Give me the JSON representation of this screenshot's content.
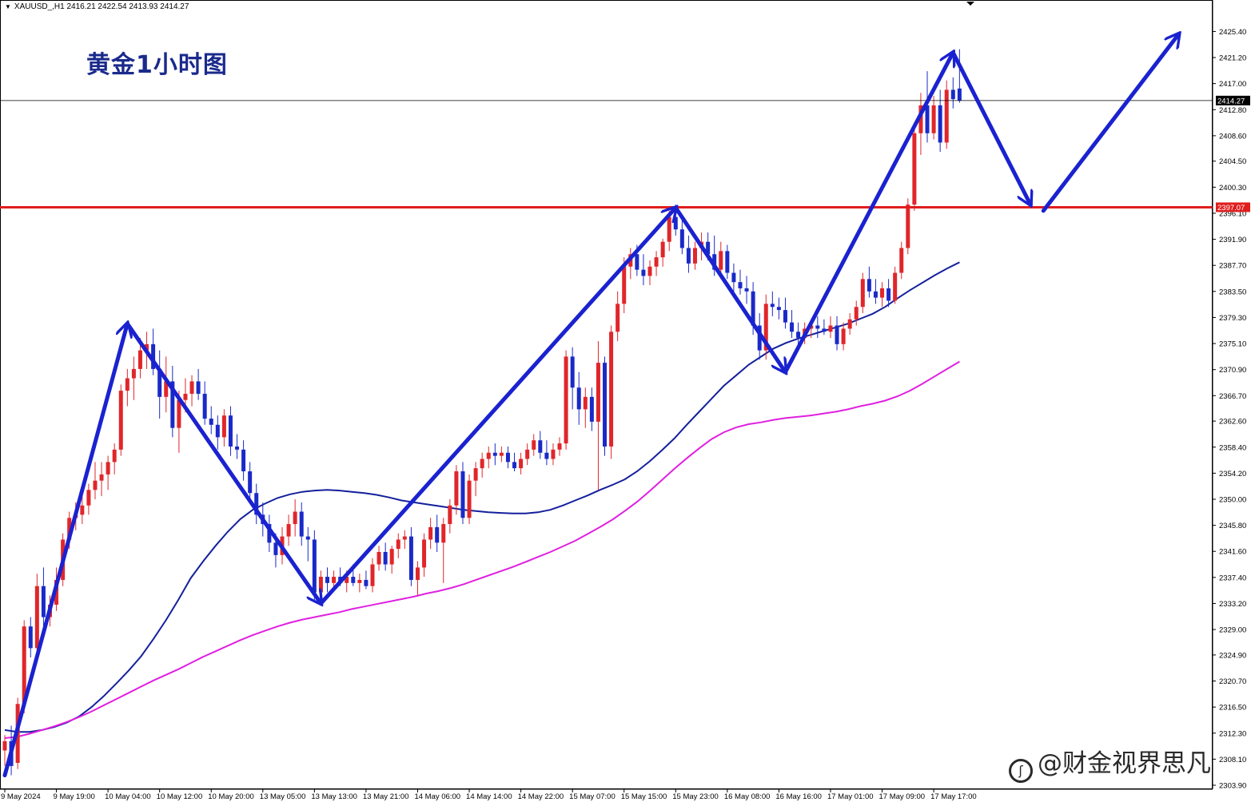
{
  "header": {
    "symbol_line": "XAUUSD_,H1  2416.21 2422.54 2413.93 2414.27"
  },
  "overlay_title": "黄金1小时图",
  "watermark": "@财金视界思凡",
  "colors": {
    "bull": "#e0262a",
    "bear": "#1a2ac8",
    "ma_fast": "#14209c",
    "ma_slow": "#e020e0",
    "support": "#e01e1e",
    "arrows": "#1a22d0"
  },
  "chart_data": {
    "type": "candlestick",
    "symbol": "XAUUSD_",
    "timeframe": "H1",
    "ohlc_header": {
      "open": 2416.21,
      "high": 2422.54,
      "low": 2413.93,
      "close": 2414.27
    },
    "current_price": 2414.27,
    "support_level": 2397.07,
    "ylim": [
      2303.9,
      2427.0
    ],
    "y_ticks": [
      "2425.40",
      "2421.20",
      "2417.00",
      "2412.80",
      "2408.60",
      "2404.50",
      "2400.30",
      "2396.10",
      "2391.90",
      "2387.70",
      "2383.50",
      "2379.30",
      "2375.10",
      "2370.90",
      "2366.70",
      "2362.60",
      "2358.40",
      "2354.20",
      "2350.00",
      "2345.80",
      "2341.60",
      "2337.40",
      "2333.20",
      "2329.00",
      "2324.90",
      "2320.70",
      "2316.50",
      "2312.30",
      "2308.10",
      "2303.90"
    ],
    "x_labels": [
      "9 May 2024",
      "9 May 19:00",
      "10 May 04:00",
      "10 May 12:00",
      "10 May 20:00",
      "13 May 05:00",
      "13 May 13:00",
      "13 May 21:00",
      "14 May 06:00",
      "14 May 14:00",
      "14 May 22:00",
      "15 May 07:00",
      "15 May 15:00",
      "15 May 23:00",
      "16 May 08:00",
      "16 May 16:00",
      "17 May 01:00",
      "17 May 09:00",
      "17 May 17:00"
    ],
    "candles": [
      [
        2309.5,
        2312.0,
        2307.0,
        2311.0
      ],
      [
        2311.0,
        2313.5,
        2305.5,
        2307.0
      ],
      [
        2307.5,
        2318.0,
        2306.5,
        2317.0
      ],
      [
        2317.0,
        2330.5,
        2315.5,
        2329.5
      ],
      [
        2329.5,
        2331.0,
        2324.5,
        2326.0
      ],
      [
        2326.0,
        2338.0,
        2325.0,
        2336.0
      ],
      [
        2336.0,
        2339.0,
        2329.5,
        2331.0
      ],
      [
        2331.0,
        2334.5,
        2329.5,
        2333.0
      ],
      [
        2333.0,
        2339.0,
        2332.0,
        2337.0
      ],
      [
        2337.0,
        2344.5,
        2336.0,
        2343.5
      ],
      [
        2343.5,
        2348.0,
        2342.0,
        2347.0
      ],
      [
        2347.0,
        2349.5,
        2345.0,
        2347.5
      ],
      [
        2347.5,
        2350.5,
        2346.0,
        2349.0
      ],
      [
        2349.0,
        2352.5,
        2347.5,
        2351.5
      ],
      [
        2351.5,
        2356.0,
        2350.0,
        2353.0
      ],
      [
        2353.0,
        2356.0,
        2350.5,
        2354.0
      ],
      [
        2354.0,
        2357.0,
        2351.5,
        2356.0
      ],
      [
        2356.0,
        2359.0,
        2354.0,
        2358.0
      ],
      [
        2358.0,
        2368.5,
        2357.0,
        2367.5
      ],
      [
        2367.5,
        2371.0,
        2365.0,
        2369.5
      ],
      [
        2369.5,
        2373.0,
        2366.0,
        2371.0
      ],
      [
        2371.0,
        2376.0,
        2369.5,
        2374.0
      ],
      [
        2374.0,
        2377.0,
        2371.0,
        2375.0
      ],
      [
        2375.0,
        2377.5,
        2370.0,
        2371.0
      ],
      [
        2371.0,
        2374.0,
        2363.0,
        2366.5
      ],
      [
        2366.5,
        2373.0,
        2364.0,
        2369.0
      ],
      [
        2369.0,
        2371.5,
        2360.0,
        2361.5
      ],
      [
        2361.5,
        2367.5,
        2357.5,
        2366.0
      ],
      [
        2366.0,
        2369.5,
        2364.0,
        2367.0
      ],
      [
        2367.0,
        2370.0,
        2365.0,
        2369.0
      ],
      [
        2369.0,
        2371.0,
        2366.0,
        2367.0
      ],
      [
        2367.0,
        2369.0,
        2362.0,
        2363.0
      ],
      [
        2363.0,
        2365.0,
        2360.5,
        2362.0
      ],
      [
        2362.0,
        2363.5,
        2358.0,
        2360.0
      ],
      [
        2360.0,
        2364.5,
        2358.5,
        2363.5
      ],
      [
        2363.5,
        2365.0,
        2357.0,
        2358.5
      ],
      [
        2358.5,
        2360.5,
        2356.5,
        2358.0
      ],
      [
        2358.0,
        2359.5,
        2353.0,
        2354.5
      ],
      [
        2354.5,
        2356.0,
        2350.0,
        2351.0
      ],
      [
        2351.0,
        2352.5,
        2346.0,
        2347.5
      ],
      [
        2347.5,
        2349.5,
        2344.0,
        2346.0
      ],
      [
        2346.0,
        2347.5,
        2341.5,
        2343.0
      ],
      [
        2343.0,
        2344.5,
        2339.0,
        2341.0
      ],
      [
        2341.0,
        2345.5,
        2339.5,
        2344.0
      ],
      [
        2344.0,
        2347.5,
        2342.5,
        2346.0
      ],
      [
        2346.0,
        2350.0,
        2344.0,
        2348.0
      ],
      [
        2348.0,
        2349.5,
        2342.5,
        2344.0
      ],
      [
        2344.0,
        2345.5,
        2340.0,
        2343.5
      ],
      [
        2343.5,
        2345.0,
        2333.5,
        2335.0
      ],
      [
        2335.0,
        2338.5,
        2333.0,
        2337.5
      ],
      [
        2337.5,
        2339.0,
        2335.0,
        2336.5
      ],
      [
        2336.5,
        2338.5,
        2335.5,
        2337.5
      ],
      [
        2337.5,
        2339.0,
        2336.0,
        2336.5
      ],
      [
        2336.5,
        2338.5,
        2335.0,
        2337.5
      ],
      [
        2337.5,
        2339.5,
        2336.0,
        2336.5
      ],
      [
        2336.5,
        2338.0,
        2335.0,
        2337.0
      ],
      [
        2337.0,
        2338.5,
        2335.5,
        2336.0
      ],
      [
        2336.0,
        2340.5,
        2335.0,
        2339.5
      ],
      [
        2339.5,
        2342.5,
        2338.5,
        2341.5
      ],
      [
        2341.5,
        2343.0,
        2338.5,
        2339.5
      ],
      [
        2339.5,
        2342.5,
        2338.0,
        2342.0
      ],
      [
        2342.0,
        2344.5,
        2340.5,
        2343.5
      ],
      [
        2343.5,
        2345.0,
        2342.0,
        2344.0
      ],
      [
        2344.0,
        2345.5,
        2336.0,
        2337.0
      ],
      [
        2337.0,
        2340.0,
        2334.5,
        2339.0
      ],
      [
        2339.0,
        2344.5,
        2337.5,
        2343.5
      ],
      [
        2343.5,
        2347.0,
        2342.0,
        2345.5
      ],
      [
        2345.5,
        2347.5,
        2341.5,
        2343.0
      ],
      [
        2343.0,
        2347.0,
        2336.5,
        2346.0
      ],
      [
        2346.0,
        2350.0,
        2344.5,
        2349.0
      ],
      [
        2349.0,
        2355.5,
        2347.5,
        2354.5
      ],
      [
        2354.5,
        2356.0,
        2346.0,
        2347.0
      ],
      [
        2347.0,
        2354.0,
        2346.0,
        2353.0
      ],
      [
        2353.0,
        2356.0,
        2350.5,
        2355.0
      ],
      [
        2355.0,
        2357.5,
        2353.5,
        2356.5
      ],
      [
        2356.5,
        2358.5,
        2355.0,
        2357.5
      ],
      [
        2357.5,
        2359.0,
        2355.5,
        2357.0
      ],
      [
        2357.0,
        2358.5,
        2356.0,
        2357.5
      ],
      [
        2357.5,
        2358.5,
        2355.0,
        2356.0
      ],
      [
        2356.0,
        2357.5,
        2354.5,
        2355.0
      ],
      [
        2355.0,
        2357.5,
        2354.0,
        2356.5
      ],
      [
        2356.5,
        2359.0,
        2355.5,
        2358.0
      ],
      [
        2358.0,
        2360.5,
        2357.0,
        2359.5
      ],
      [
        2359.5,
        2361.0,
        2356.5,
        2357.5
      ],
      [
        2357.5,
        2359.5,
        2355.5,
        2356.5
      ],
      [
        2356.5,
        2359.0,
        2355.5,
        2358.0
      ],
      [
        2358.0,
        2360.0,
        2357.0,
        2359.0
      ],
      [
        2359.0,
        2374.0,
        2358.0,
        2373.0
      ],
      [
        2373.0,
        2374.5,
        2364.5,
        2368.0
      ],
      [
        2368.0,
        2370.5,
        2362.0,
        2364.5
      ],
      [
        2364.5,
        2368.0,
        2361.5,
        2366.5
      ],
      [
        2366.5,
        2368.0,
        2361.0,
        2362.5
      ],
      [
        2362.5,
        2375.5,
        2351.5,
        2372.0
      ],
      [
        2372.0,
        2373.0,
        2357.0,
        2358.5
      ],
      [
        2358.5,
        2378.0,
        2356.5,
        2377.0
      ],
      [
        2377.0,
        2383.5,
        2375.5,
        2381.5
      ],
      [
        2381.5,
        2389.0,
        2380.0,
        2387.5
      ],
      [
        2387.5,
        2390.5,
        2385.5,
        2389.5
      ],
      [
        2389.5,
        2391.0,
        2386.0,
        2387.0
      ],
      [
        2387.0,
        2389.5,
        2384.5,
        2386.0
      ],
      [
        2386.0,
        2388.5,
        2384.5,
        2387.5
      ],
      [
        2387.5,
        2390.0,
        2386.0,
        2389.0
      ],
      [
        2389.0,
        2392.0,
        2387.5,
        2391.5
      ],
      [
        2391.5,
        2396.5,
        2390.0,
        2395.5
      ],
      [
        2395.5,
        2397.5,
        2392.5,
        2393.5
      ],
      [
        2393.5,
        2395.0,
        2389.5,
        2390.5
      ],
      [
        2390.5,
        2392.5,
        2386.5,
        2388.0
      ],
      [
        2388.0,
        2391.5,
        2387.0,
        2390.5
      ],
      [
        2390.5,
        2393.0,
        2388.5,
        2391.5
      ],
      [
        2391.5,
        2393.0,
        2388.5,
        2389.5
      ],
      [
        2389.5,
        2392.5,
        2386.0,
        2387.0
      ],
      [
        2387.0,
        2391.5,
        2385.5,
        2390.0
      ],
      [
        2390.0,
        2391.0,
        2385.5,
        2386.5
      ],
      [
        2386.5,
        2388.0,
        2383.5,
        2385.0
      ],
      [
        2385.0,
        2387.0,
        2383.0,
        2384.0
      ],
      [
        2384.0,
        2386.0,
        2381.5,
        2383.5
      ],
      [
        2383.5,
        2385.0,
        2376.5,
        2378.0
      ],
      [
        2378.0,
        2380.0,
        2372.5,
        2374.0
      ],
      [
        2374.0,
        2383.0,
        2372.5,
        2381.5
      ],
      [
        2381.5,
        2383.5,
        2379.5,
        2381.0
      ],
      [
        2381.0,
        2382.5,
        2379.0,
        2380.5
      ],
      [
        2380.5,
        2382.5,
        2377.5,
        2378.5
      ],
      [
        2378.5,
        2380.5,
        2376.0,
        2377.0
      ],
      [
        2377.0,
        2378.5,
        2375.0,
        2376.0
      ],
      [
        2376.0,
        2378.5,
        2375.0,
        2377.5
      ],
      [
        2377.5,
        2379.0,
        2376.0,
        2378.0
      ],
      [
        2378.0,
        2379.5,
        2376.0,
        2377.5
      ],
      [
        2377.5,
        2379.0,
        2376.5,
        2377.0
      ],
      [
        2377.0,
        2379.5,
        2376.0,
        2378.0
      ],
      [
        2378.0,
        2379.5,
        2374.0,
        2375.0
      ],
      [
        2375.0,
        2378.5,
        2374.0,
        2377.5
      ],
      [
        2377.5,
        2380.0,
        2376.5,
        2379.0
      ],
      [
        2379.0,
        2382.0,
        2378.0,
        2381.0
      ],
      [
        2381.0,
        2386.5,
        2380.0,
        2385.5
      ],
      [
        2385.5,
        2387.5,
        2382.5,
        2383.5
      ],
      [
        2383.5,
        2385.5,
        2381.5,
        2382.5
      ],
      [
        2382.5,
        2385.0,
        2381.0,
        2384.0
      ],
      [
        2384.0,
        2385.5,
        2381.0,
        2382.0
      ],
      [
        2382.0,
        2387.5,
        2381.5,
        2386.5
      ],
      [
        2386.5,
        2391.5,
        2385.5,
        2390.5
      ],
      [
        2390.5,
        2398.5,
        2389.5,
        2397.5
      ],
      [
        2397.5,
        2410.0,
        2396.5,
        2409.0
      ],
      [
        2409.0,
        2415.5,
        2405.5,
        2413.5
      ],
      [
        2413.5,
        2419.0,
        2407.5,
        2409.0
      ],
      [
        2409.0,
        2415.0,
        2408.0,
        2413.5
      ],
      [
        2413.5,
        2416.0,
        2406.0,
        2407.5
      ],
      [
        2407.5,
        2417.5,
        2406.5,
        2416.0
      ],
      [
        2416.0,
        2418.0,
        2413.0,
        2414.5
      ],
      [
        2416.21,
        2422.54,
        2413.93,
        2414.27
      ]
    ],
    "series": [
      {
        "name": "",
        "type": "ma",
        "color_key": "ma_fast",
        "values": [
          2312.8,
          2312.5,
          2312.5,
          2312.8,
          2313.3,
          2314.0,
          2315.0,
          2316.5,
          2318.3,
          2320.3,
          2322.4,
          2324.7,
          2327.5,
          2330.5,
          2333.8,
          2337.3,
          2340.0,
          2342.5,
          2344.8,
          2346.8,
          2348.3,
          2349.3,
          2350.2,
          2350.8,
          2351.2,
          2351.4,
          2351.5,
          2351.4,
          2351.2,
          2351.0,
          2350.7,
          2350.3,
          2349.8,
          2349.5,
          2349.2,
          2348.9,
          2348.6,
          2348.3,
          2348.1,
          2347.9,
          2347.8,
          2347.7,
          2347.7,
          2347.9,
          2348.3,
          2349.0,
          2349.8,
          2350.6,
          2351.5,
          2352.3,
          2353.2,
          2354.5,
          2356.1,
          2357.9,
          2359.8,
          2362.0,
          2364.1,
          2366.2,
          2368.3,
          2370.0,
          2371.7,
          2373.0,
          2374.3,
          2375.2,
          2375.9,
          2376.5,
          2377.1,
          2377.7,
          2378.3,
          2379.1,
          2379.9,
          2381.0,
          2382.4,
          2383.7,
          2384.9,
          2386.1,
          2387.2,
          2388.2
        ]
      },
      {
        "name": "",
        "type": "ma",
        "color_key": "ma_slow",
        "values": [
          2311.5,
          2311.7,
          2312.2,
          2312.8,
          2313.4,
          2314.1,
          2314.9,
          2315.8,
          2316.8,
          2317.8,
          2318.8,
          2319.8,
          2320.8,
          2321.7,
          2322.6,
          2323.6,
          2324.6,
          2325.5,
          2326.4,
          2327.3,
          2328.1,
          2328.8,
          2329.5,
          2330.1,
          2330.6,
          2331.0,
          2331.4,
          2331.8,
          2332.3,
          2332.7,
          2333.1,
          2333.5,
          2333.9,
          2334.3,
          2334.8,
          2335.2,
          2335.7,
          2336.3,
          2337.0,
          2337.7,
          2338.4,
          2339.1,
          2339.9,
          2340.7,
          2341.5,
          2342.4,
          2343.3,
          2344.4,
          2345.5,
          2346.7,
          2348.1,
          2349.6,
          2351.3,
          2353.1,
          2354.9,
          2356.6,
          2358.2,
          2359.7,
          2360.8,
          2361.6,
          2362.1,
          2362.4,
          2362.8,
          2363.1,
          2363.3,
          2363.5,
          2363.8,
          2364.1,
          2364.5,
          2365.0,
          2365.4,
          2365.9,
          2366.6,
          2367.5,
          2368.6,
          2369.8,
          2371.0,
          2372.2
        ]
      }
    ],
    "annotation_arrows": [
      {
        "from": [
          0,
          2305.5
        ],
        "to": [
          19,
          2378.3
        ]
      },
      {
        "from": [
          19,
          2378.3
        ],
        "to": [
          49,
          2333.2
        ]
      },
      {
        "from": [
          49,
          2333.2
        ],
        "to": [
          104,
          2397.0
        ]
      },
      {
        "from": [
          104,
          2397.0
        ],
        "to": [
          121,
          2370.5
        ]
      },
      {
        "from": [
          121,
          2370.5
        ],
        "to": [
          147,
          2422.0
        ]
      },
      {
        "from": [
          147,
          2422.0
        ],
        "to": [
          159,
          2397.5
        ]
      },
      {
        "from": [
          161,
          2396.5
        ],
        "to": [
          182,
          2425.0
        ]
      }
    ]
  }
}
